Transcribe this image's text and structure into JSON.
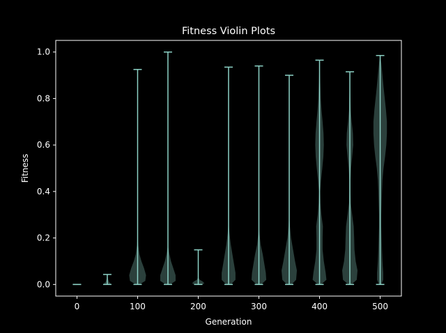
{
  "chart_data": {
    "type": "violin",
    "title": "Fitness Violin Plots",
    "xlabel": "Generation",
    "ylabel": "Fitness",
    "xlim": [
      -35,
      535
    ],
    "ylim": [
      -0.05,
      1.05
    ],
    "xticks": [
      0,
      100,
      200,
      300,
      400,
      500
    ],
    "yticks": [
      0.0,
      0.2,
      0.4,
      0.6,
      0.8,
      1.0
    ],
    "ytick_labels": [
      "0.0",
      "0.2",
      "0.4",
      "0.6",
      "0.8",
      "1.0"
    ],
    "grid": false,
    "colors": {
      "background": "#000000",
      "violin_fill": "#8dd3c7",
      "line": "#8dd3c7",
      "text": "#ffffff"
    },
    "violins": [
      {
        "generation": 0,
        "min": 0.0,
        "max": 0.0,
        "profile": []
      },
      {
        "generation": 50,
        "min": 0.0,
        "max": 0.043,
        "profile": [
          [
            0.0,
            0.22
          ],
          [
            0.005,
            0.2
          ],
          [
            0.012,
            0.1
          ],
          [
            0.025,
            0.04
          ],
          [
            0.043,
            0.0
          ]
        ]
      },
      {
        "generation": 100,
        "min": 0.0,
        "max": 0.925,
        "profile": [
          [
            0.0,
            0.12
          ],
          [
            0.015,
            0.5
          ],
          [
            0.04,
            0.55
          ],
          [
            0.07,
            0.42
          ],
          [
            0.1,
            0.25
          ],
          [
            0.13,
            0.12
          ],
          [
            0.17,
            0.04
          ],
          [
            0.22,
            0.0
          ]
        ]
      },
      {
        "generation": 150,
        "min": 0.0,
        "max": 1.0,
        "profile": [
          [
            0.0,
            0.14
          ],
          [
            0.015,
            0.5
          ],
          [
            0.04,
            0.5
          ],
          [
            0.07,
            0.35
          ],
          [
            0.1,
            0.2
          ],
          [
            0.13,
            0.1
          ],
          [
            0.17,
            0.0
          ]
        ]
      },
      {
        "generation": 200,
        "min": 0.0,
        "max": 0.149,
        "profile": [
          [
            0.0,
            0.25
          ],
          [
            0.005,
            0.4
          ],
          [
            0.012,
            0.3
          ],
          [
            0.02,
            0.1
          ],
          [
            0.03,
            0.0
          ]
        ]
      },
      {
        "generation": 250,
        "min": 0.0,
        "max": 0.935,
        "profile": [
          [
            0.0,
            0.15
          ],
          [
            0.02,
            0.45
          ],
          [
            0.05,
            0.45
          ],
          [
            0.09,
            0.35
          ],
          [
            0.13,
            0.25
          ],
          [
            0.17,
            0.15
          ],
          [
            0.22,
            0.06
          ],
          [
            0.27,
            0.0
          ]
        ]
      },
      {
        "generation": 300,
        "min": 0.0,
        "max": 0.94,
        "profile": [
          [
            0.0,
            0.15
          ],
          [
            0.02,
            0.48
          ],
          [
            0.05,
            0.45
          ],
          [
            0.09,
            0.35
          ],
          [
            0.13,
            0.25
          ],
          [
            0.17,
            0.12
          ],
          [
            0.22,
            0.04
          ],
          [
            0.25,
            0.0
          ]
        ]
      },
      {
        "generation": 350,
        "min": 0.0,
        "max": 0.9,
        "profile": [
          [
            0.0,
            0.15
          ],
          [
            0.02,
            0.45
          ],
          [
            0.06,
            0.5
          ],
          [
            0.1,
            0.38
          ],
          [
            0.15,
            0.25
          ],
          [
            0.2,
            0.12
          ],
          [
            0.25,
            0.05
          ],
          [
            0.3,
            0.0
          ]
        ]
      },
      {
        "generation": 400,
        "min": 0.0,
        "max": 0.965,
        "profile": [
          [
            0.0,
            0.1
          ],
          [
            0.02,
            0.45
          ],
          [
            0.05,
            0.4
          ],
          [
            0.1,
            0.28
          ],
          [
            0.15,
            0.2
          ],
          [
            0.2,
            0.2
          ],
          [
            0.25,
            0.22
          ],
          [
            0.3,
            0.12
          ],
          [
            0.35,
            0.06
          ],
          [
            0.4,
            0.04
          ],
          [
            0.45,
            0.1
          ],
          [
            0.5,
            0.18
          ],
          [
            0.55,
            0.25
          ],
          [
            0.6,
            0.28
          ],
          [
            0.65,
            0.26
          ],
          [
            0.7,
            0.2
          ],
          [
            0.75,
            0.13
          ],
          [
            0.8,
            0.08
          ],
          [
            0.88,
            0.04
          ],
          [
            0.965,
            0.0
          ]
        ]
      },
      {
        "generation": 450,
        "min": 0.0,
        "max": 0.915,
        "profile": [
          [
            0.0,
            0.1
          ],
          [
            0.02,
            0.45
          ],
          [
            0.06,
            0.5
          ],
          [
            0.1,
            0.38
          ],
          [
            0.15,
            0.3
          ],
          [
            0.2,
            0.28
          ],
          [
            0.25,
            0.25
          ],
          [
            0.3,
            0.15
          ],
          [
            0.35,
            0.06
          ],
          [
            0.4,
            0.04
          ],
          [
            0.45,
            0.04
          ],
          [
            0.5,
            0.08
          ],
          [
            0.55,
            0.15
          ],
          [
            0.6,
            0.22
          ],
          [
            0.65,
            0.2
          ],
          [
            0.7,
            0.12
          ],
          [
            0.75,
            0.06
          ],
          [
            0.82,
            0.03
          ],
          [
            0.915,
            0.0
          ]
        ]
      },
      {
        "generation": 500,
        "min": 0.0,
        "max": 0.985,
        "profile": [
          [
            0.0,
            0.08
          ],
          [
            0.02,
            0.2
          ],
          [
            0.05,
            0.2
          ],
          [
            0.1,
            0.15
          ],
          [
            0.15,
            0.12
          ],
          [
            0.2,
            0.1
          ],
          [
            0.25,
            0.08
          ],
          [
            0.3,
            0.08
          ],
          [
            0.35,
            0.1
          ],
          [
            0.4,
            0.12
          ],
          [
            0.45,
            0.15
          ],
          [
            0.5,
            0.22
          ],
          [
            0.55,
            0.32
          ],
          [
            0.6,
            0.4
          ],
          [
            0.65,
            0.44
          ],
          [
            0.7,
            0.44
          ],
          [
            0.75,
            0.38
          ],
          [
            0.8,
            0.3
          ],
          [
            0.85,
            0.22
          ],
          [
            0.9,
            0.15
          ],
          [
            0.95,
            0.08
          ],
          [
            0.985,
            0.0
          ]
        ]
      }
    ]
  }
}
